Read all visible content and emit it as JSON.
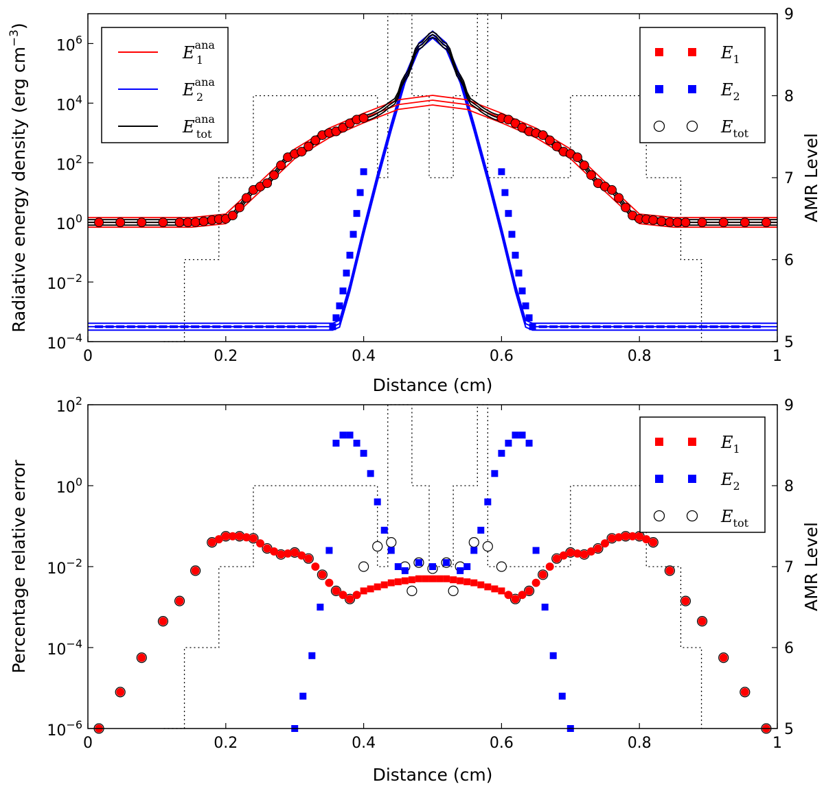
{
  "chart_data": [
    {
      "type": "line",
      "panel": "top",
      "xlabel": "Distance (cm)",
      "ylabel": "Radiative energy density (erg cm",
      "ylabel_exp": "−3",
      "ylabel_end": ")",
      "y2label": "AMR Level",
      "xlim": [
        0,
        1
      ],
      "ylim_log10": [
        -4,
        7
      ],
      "y2lim": [
        5,
        9
      ],
      "xticks": [
        "0",
        "0.2",
        "0.4",
        "0.6",
        "0.8",
        "1"
      ],
      "yticks": [
        {
          "base": "10",
          "exp": "−4"
        },
        {
          "base": "10",
          "exp": "−2"
        },
        {
          "base": "10",
          "exp": "0"
        },
        {
          "base": "10",
          "exp": "2"
        },
        {
          "base": "10",
          "exp": "4"
        },
        {
          "base": "10",
          "exp": "6"
        }
      ],
      "y2ticks": [
        "5",
        "6",
        "7",
        "8",
        "9"
      ],
      "legend_left": [
        {
          "base": "E",
          "sub": "1",
          "sup": "ana",
          "color": "#ff0000",
          "style": "line"
        },
        {
          "base": "E",
          "sub": "2",
          "sup": "ana",
          "color": "#0000ff",
          "style": "line"
        },
        {
          "base": "E",
          "sub": "tot",
          "sup": "ana",
          "color": "#000000",
          "style": "line"
        }
      ],
      "legend_right": [
        {
          "base": "E",
          "sub": "1",
          "color": "#ff0000",
          "style": "square"
        },
        {
          "base": "E",
          "sub": "2",
          "color": "#0000ff",
          "style": "square"
        },
        {
          "base": "E",
          "sub": "tot",
          "color": "#000000",
          "style": "circle"
        }
      ],
      "series": [
        {
          "name": "E1 (analytic & simulated)",
          "x": [
            0.0,
            0.15,
            0.2,
            0.25,
            0.3,
            0.35,
            0.4,
            0.45,
            0.5,
            0.55,
            0.6,
            0.65,
            0.7,
            0.75,
            0.8,
            0.85,
            1.0
          ],
          "log10_y": [
            0.0,
            0.0,
            0.12,
            1.2,
            2.3,
            3.0,
            3.5,
            3.95,
            4.1,
            3.95,
            3.5,
            3.0,
            2.3,
            1.2,
            0.12,
            0.0,
            0.0
          ]
        },
        {
          "name": "E2 (analytic)",
          "x": [
            0.0,
            0.355,
            0.365,
            0.38,
            0.4,
            0.42,
            0.44,
            0.46,
            0.48,
            0.5,
            0.52,
            0.54,
            0.56,
            0.58,
            0.6,
            0.62,
            0.635,
            0.645,
            1.0
          ],
          "log10_y": [
            -3.5,
            -3.5,
            -3.4,
            -2.2,
            -0.3,
            1.5,
            3.2,
            4.8,
            5.9,
            6.3,
            5.9,
            4.8,
            3.2,
            1.5,
            -0.3,
            -2.2,
            -3.4,
            -3.5,
            -3.5
          ]
        },
        {
          "name": "E2 (simulated)",
          "x": [
            0.355,
            0.36,
            0.365,
            0.37,
            0.375,
            0.38,
            0.385,
            0.39,
            0.395,
            0.4,
            0.6,
            0.605,
            0.61,
            0.615,
            0.62,
            0.625,
            0.63,
            0.635,
            0.64,
            0.645
          ],
          "log10_y": [
            -3.5,
            -3.2,
            -2.8,
            -2.3,
            -1.7,
            -1.1,
            -0.4,
            0.3,
            1.0,
            1.7,
            1.7,
            1.0,
            0.3,
            -0.4,
            -1.1,
            -1.7,
            -2.3,
            -2.8,
            -3.2,
            -3.5
          ]
        }
      ],
      "amr_level": {
        "x": [
          0.11,
          0.14,
          0.19,
          0.24,
          0.3,
          0.42,
          0.435,
          0.47,
          0.495,
          0.505,
          0.53,
          0.565,
          0.58,
          0.7,
          0.76,
          0.81,
          0.86,
          0.89
        ],
        "level": [
          5,
          6,
          7,
          8,
          8,
          7,
          9,
          8,
          7,
          7,
          8,
          9,
          7,
          8,
          8,
          7,
          6,
          5
        ]
      }
    },
    {
      "type": "scatter",
      "panel": "bottom",
      "xlabel": "Distance (cm)",
      "ylabel": "Percentage relative error",
      "y2label": "AMR Level",
      "xlim": [
        0,
        1
      ],
      "ylim_log10": [
        -6,
        2
      ],
      "y2lim": [
        5,
        9
      ],
      "xticks": [
        "0",
        "0.2",
        "0.4",
        "0.6",
        "0.8",
        "1"
      ],
      "yticks": [
        {
          "base": "10",
          "exp": "−6"
        },
        {
          "base": "10",
          "exp": "−4"
        },
        {
          "base": "10",
          "exp": "−2"
        },
        {
          "base": "10",
          "exp": "0"
        },
        {
          "base": "10",
          "exp": "2"
        }
      ],
      "y2ticks": [
        "5",
        "6",
        "7",
        "8",
        "9"
      ],
      "legend_right": [
        {
          "base": "E",
          "sub": "1",
          "color": "#ff0000",
          "style": "square"
        },
        {
          "base": "E",
          "sub": "2",
          "color": "#0000ff",
          "style": "square"
        },
        {
          "base": "E",
          "sub": "tot",
          "color": "#000000",
          "style": "circle"
        }
      ],
      "series": [
        {
          "name": "E1 error",
          "x": [
            0.016,
            0.047,
            0.078,
            0.109,
            0.133,
            0.156,
            0.18,
            0.2,
            0.22,
            0.24,
            0.26,
            0.28,
            0.3,
            0.32,
            0.34,
            0.36,
            0.38,
            0.4,
            0.42,
            0.44,
            0.46,
            0.48,
            0.5,
            0.52,
            0.54,
            0.56,
            0.58,
            0.6,
            0.62,
            0.64,
            0.66,
            0.68,
            0.7,
            0.72,
            0.74,
            0.76,
            0.78,
            0.8,
            0.82,
            0.844,
            0.867,
            0.891,
            0.922,
            0.953,
            0.984
          ],
          "log10_y": [
            -6.0,
            -5.1,
            -4.25,
            -3.35,
            -2.85,
            -2.1,
            -1.4,
            -1.25,
            -1.25,
            -1.3,
            -1.55,
            -1.7,
            -1.65,
            -1.8,
            -2.2,
            -2.6,
            -2.8,
            -2.6,
            -2.5,
            -2.4,
            -2.35,
            -2.3,
            -2.3,
            -2.3,
            -2.35,
            -2.4,
            -2.5,
            -2.6,
            -2.8,
            -2.6,
            -2.2,
            -1.8,
            -1.65,
            -1.7,
            -1.55,
            -1.3,
            -1.25,
            -1.25,
            -1.4,
            -2.1,
            -2.85,
            -3.35,
            -4.25,
            -5.1,
            -6.0
          ]
        },
        {
          "name": "E2 error",
          "x": [
            0.3,
            0.312,
            0.325,
            0.337,
            0.35,
            0.36,
            0.37,
            0.38,
            0.39,
            0.4,
            0.41,
            0.42,
            0.43,
            0.44,
            0.45,
            0.46,
            0.48,
            0.5,
            0.52,
            0.54,
            0.55,
            0.56,
            0.57,
            0.58,
            0.59,
            0.6,
            0.61,
            0.62,
            0.63,
            0.64,
            0.65,
            0.663,
            0.675,
            0.688,
            0.7
          ],
          "log10_y": [
            -6.0,
            -5.2,
            -4.2,
            -3.0,
            -1.6,
            1.05,
            1.25,
            1.25,
            1.05,
            0.8,
            0.3,
            -0.4,
            -1.1,
            -1.6,
            -2.0,
            -2.1,
            -1.9,
            -2.0,
            -1.9,
            -2.1,
            -2.0,
            -1.6,
            -1.1,
            -0.4,
            0.3,
            0.8,
            1.05,
            1.25,
            1.25,
            1.05,
            -1.6,
            -3.0,
            -4.2,
            -5.2,
            -6.0
          ]
        },
        {
          "name": "Etot error",
          "x": [
            0.016,
            0.047,
            0.078,
            0.109,
            0.133,
            0.156,
            0.18,
            0.2,
            0.22,
            0.24,
            0.26,
            0.28,
            0.3,
            0.32,
            0.34,
            0.36,
            0.38,
            0.4,
            0.42,
            0.44,
            0.46,
            0.47,
            0.48,
            0.5,
            0.52,
            0.53,
            0.54,
            0.56,
            0.58,
            0.6,
            0.62,
            0.64,
            0.66,
            0.68,
            0.7,
            0.72,
            0.74,
            0.76,
            0.78,
            0.8,
            0.82,
            0.844,
            0.867,
            0.891,
            0.922,
            0.953,
            0.984
          ],
          "log10_y": [
            -6.0,
            -5.1,
            -4.25,
            -3.35,
            -2.85,
            -2.1,
            -1.4,
            -1.25,
            -1.25,
            -1.3,
            -1.55,
            -1.7,
            -1.65,
            -1.8,
            -2.2,
            -2.6,
            -2.8,
            -2.0,
            -1.5,
            -1.4,
            -2.0,
            -2.6,
            -1.9,
            -2.05,
            -1.9,
            -2.6,
            -2.0,
            -1.4,
            -1.5,
            -2.0,
            -2.8,
            -2.6,
            -2.2,
            -1.8,
            -1.65,
            -1.7,
            -1.55,
            -1.3,
            -1.25,
            -1.25,
            -1.4,
            -2.1,
            -2.85,
            -3.35,
            -4.25,
            -5.1,
            -6.0
          ]
        }
      ],
      "amr_level": {
        "x": [
          0.11,
          0.14,
          0.19,
          0.24,
          0.3,
          0.42,
          0.435,
          0.47,
          0.495,
          0.505,
          0.53,
          0.565,
          0.58,
          0.7,
          0.76,
          0.81,
          0.86,
          0.89
        ],
        "level": [
          5,
          6,
          7,
          8,
          8,
          7,
          9,
          8,
          7,
          7,
          8,
          9,
          7,
          8,
          8,
          7,
          6,
          5
        ]
      }
    }
  ]
}
